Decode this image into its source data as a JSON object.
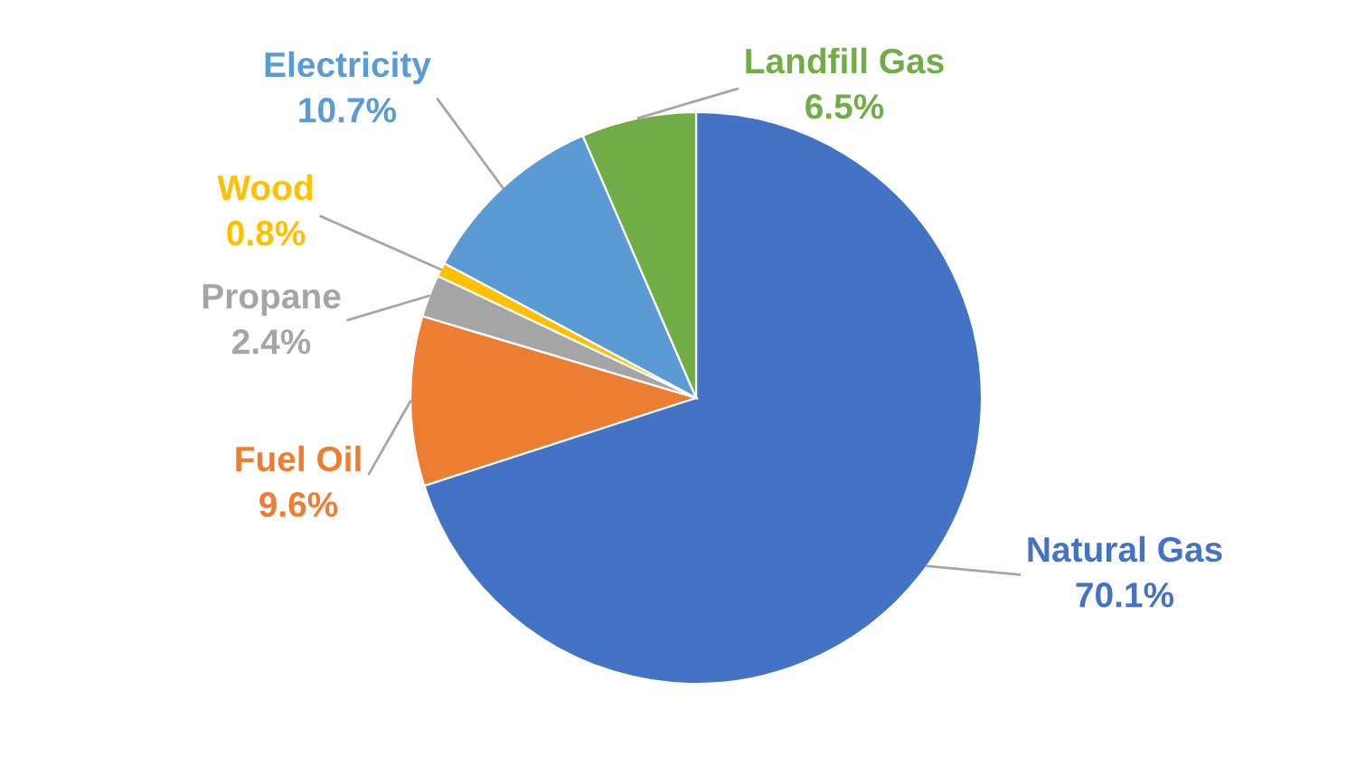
{
  "chart_data": {
    "type": "pie",
    "categories": [
      "Natural Gas",
      "Fuel Oil",
      "Propane",
      "Wood",
      "Electricity",
      "Landfill Gas"
    ],
    "values": [
      70.1,
      9.6,
      2.4,
      0.8,
      10.7,
      6.5
    ],
    "colors": [
      "#4472c4",
      "#ed7d31",
      "#a5a5a5",
      "#ffc000",
      "#5b9bd5",
      "#70ad47"
    ],
    "value_labels": [
      "70.1%",
      "9.6%",
      "2.4%",
      "0.8%",
      "10.7%",
      "6.5%"
    ],
    "legend": false
  }
}
